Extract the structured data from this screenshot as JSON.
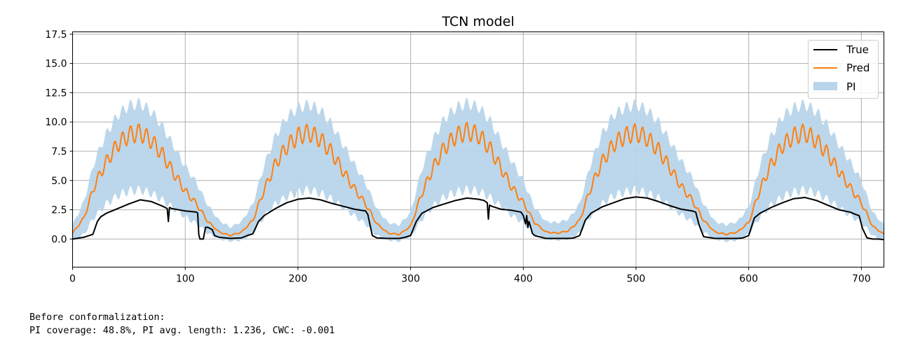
{
  "chart_data": {
    "type": "line",
    "title": "TCN model",
    "xlabel": "",
    "ylabel": "",
    "xlim": [
      0,
      720
    ],
    "ylim": [
      -2.4,
      17.7
    ],
    "xticks": [
      0,
      100,
      200,
      300,
      400,
      500,
      600,
      700
    ],
    "xtick_labels": [
      "0",
      "100",
      "200",
      "300",
      "400",
      "500",
      "600",
      "700"
    ],
    "yticks": [
      0.0,
      2.5,
      5.0,
      7.5,
      10.0,
      12.5,
      15.0,
      17.5
    ],
    "ytick_labels": [
      "0.0",
      "2.5",
      "5.0",
      "7.5",
      "10.0",
      "12.5",
      "15.0",
      "17.5"
    ],
    "grid": true,
    "legend_position": "top-right",
    "legend": [
      "True",
      "Pred",
      "PI"
    ],
    "series": [
      {
        "name": "True",
        "color": "#000000",
        "x": [
          0,
          10,
          18,
          22,
          25,
          30,
          40,
          50,
          60,
          70,
          80,
          84,
          85,
          86,
          88,
          100,
          110,
          111,
          112,
          113,
          114,
          116,
          118,
          120,
          124,
          126,
          130,
          140,
          150,
          155,
          160,
          165,
          170,
          180,
          190,
          200,
          210,
          220,
          230,
          240,
          250,
          260,
          262,
          266,
          270,
          280,
          290,
          295,
          300,
          305,
          310,
          320,
          330,
          340,
          350,
          360,
          365,
          368,
          369,
          370,
          371,
          372,
          380,
          390,
          398,
          400,
          402,
          403,
          404,
          405,
          406,
          408,
          410,
          420,
          430,
          440,
          445,
          450,
          455,
          460,
          470,
          480,
          490,
          500,
          510,
          520,
          530,
          540,
          550,
          553,
          556,
          560,
          570,
          580,
          590,
          595,
          600,
          605,
          610,
          620,
          630,
          640,
          650,
          660,
          670,
          680,
          690,
          695,
          698,
          701,
          705,
          710,
          715,
          720
        ],
        "y": [
          0.0,
          0.15,
          0.4,
          1.5,
          1.9,
          2.2,
          2.6,
          3.0,
          3.35,
          3.2,
          2.8,
          2.6,
          1.5,
          2.7,
          2.6,
          2.4,
          2.3,
          2.2,
          0.4,
          0.0,
          0.0,
          0.0,
          1.0,
          1.0,
          0.8,
          0.3,
          0.15,
          0.05,
          0.1,
          0.3,
          0.45,
          1.5,
          2.0,
          2.6,
          3.1,
          3.4,
          3.5,
          3.35,
          3.05,
          2.8,
          2.55,
          2.4,
          2.1,
          0.3,
          0.1,
          0.05,
          0.05,
          0.15,
          0.3,
          1.5,
          2.2,
          2.7,
          3.0,
          3.3,
          3.5,
          3.4,
          3.3,
          3.1,
          1.7,
          2.9,
          2.85,
          2.8,
          2.55,
          2.45,
          2.3,
          2.0,
          1.3,
          2.0,
          1.0,
          1.5,
          1.2,
          0.5,
          0.3,
          0.05,
          0.05,
          0.05,
          0.1,
          0.3,
          1.6,
          2.2,
          2.75,
          3.1,
          3.45,
          3.6,
          3.5,
          3.2,
          2.85,
          2.55,
          2.4,
          2.3,
          1.2,
          0.2,
          0.05,
          0.05,
          0.05,
          0.1,
          0.3,
          1.8,
          2.2,
          2.7,
          3.1,
          3.45,
          3.55,
          3.3,
          2.9,
          2.5,
          2.3,
          2.1,
          2.0,
          0.9,
          0.1,
          0.0,
          0.0,
          -0.05
        ]
      },
      {
        "name": "Pred",
        "color": "#ff7f0e",
        "x": [
          0,
          10,
          20,
          30,
          40,
          50,
          60,
          70,
          80,
          90,
          100,
          110,
          120,
          130,
          140,
          150,
          160,
          170,
          180,
          190,
          200,
          210,
          220,
          230,
          240,
          250,
          260,
          270,
          280,
          290,
          300,
          310,
          320,
          330,
          340,
          350,
          360,
          370,
          380,
          390,
          400,
          410,
          420,
          430,
          440,
          450,
          460,
          470,
          480,
          490,
          500,
          510,
          520,
          530,
          540,
          550,
          560,
          570,
          580,
          590,
          600,
          610,
          620,
          630,
          640,
          650,
          660,
          670,
          680,
          690,
          700,
          710,
          720
        ],
        "y": [
          0.5,
          1.8,
          4.7,
          6.6,
          8.1,
          8.9,
          9.1,
          8.4,
          7.2,
          5.6,
          4.1,
          3.0,
          1.5,
          0.6,
          0.3,
          0.6,
          1.6,
          4.2,
          6.4,
          7.9,
          8.8,
          9.1,
          8.5,
          7.4,
          5.8,
          4.3,
          3.0,
          1.3,
          0.5,
          0.4,
          1.1,
          3.9,
          6.1,
          7.8,
          8.8,
          9.2,
          8.9,
          7.8,
          6.1,
          4.4,
          3.1,
          1.4,
          0.6,
          0.5,
          0.7,
          1.6,
          4.4,
          6.6,
          8.1,
          8.8,
          9.1,
          8.6,
          7.6,
          6.1,
          4.5,
          3.3,
          1.6,
          0.6,
          0.4,
          0.6,
          1.4,
          4.2,
          6.4,
          8.0,
          8.8,
          9.1,
          8.4,
          7.3,
          5.8,
          4.4,
          3.1,
          1.1,
          0.4
        ]
      },
      {
        "name": "PI",
        "color": "#b8d5ea",
        "type": "area",
        "x": [
          0,
          10,
          20,
          30,
          40,
          50,
          60,
          70,
          80,
          90,
          100,
          110,
          120,
          130,
          140,
          150,
          160,
          170,
          180,
          190,
          200,
          210,
          220,
          230,
          240,
          250,
          260,
          270,
          280,
          290,
          300,
          310,
          320,
          330,
          340,
          350,
          360,
          370,
          380,
          390,
          400,
          410,
          420,
          430,
          440,
          450,
          460,
          470,
          480,
          490,
          500,
          510,
          520,
          530,
          540,
          550,
          560,
          570,
          580,
          590,
          600,
          610,
          620,
          630,
          640,
          650,
          660,
          670,
          680,
          690,
          700,
          710,
          720
        ],
        "lower": [
          -0.2,
          0.4,
          2.0,
          3.0,
          3.7,
          4.1,
          4.2,
          3.9,
          3.3,
          2.6,
          1.9,
          1.3,
          0.5,
          0.0,
          -0.2,
          -0.1,
          0.5,
          1.9,
          3.0,
          3.6,
          4.0,
          4.2,
          3.9,
          3.4,
          2.7,
          2.0,
          1.3,
          0.3,
          -0.1,
          -0.2,
          0.2,
          1.7,
          2.8,
          3.6,
          4.0,
          4.2,
          4.1,
          3.6,
          2.8,
          2.0,
          1.4,
          0.4,
          0.0,
          -0.1,
          0.0,
          0.5,
          2.0,
          3.0,
          3.7,
          4.0,
          4.2,
          3.9,
          3.5,
          2.8,
          2.1,
          1.5,
          0.6,
          0.0,
          -0.2,
          -0.1,
          0.4,
          1.9,
          2.9,
          3.6,
          4.0,
          4.2,
          3.9,
          3.4,
          2.7,
          2.0,
          1.4,
          0.3,
          -0.2
        ],
        "upper": [
          1.2,
          3.2,
          6.8,
          9.0,
          10.6,
          11.4,
          11.6,
          10.9,
          9.6,
          7.9,
          6.2,
          4.8,
          2.9,
          1.6,
          1.0,
          1.5,
          3.0,
          6.3,
          8.8,
          10.4,
          11.2,
          11.5,
          11.0,
          9.8,
          8.1,
          6.4,
          4.8,
          2.6,
          1.4,
          1.2,
          2.3,
          6.0,
          8.5,
          10.3,
          11.2,
          11.6,
          11.3,
          10.2,
          8.4,
          6.6,
          5.0,
          2.7,
          1.5,
          1.4,
          1.7,
          3.0,
          6.5,
          9.0,
          10.6,
          11.2,
          11.5,
          11.0,
          10.0,
          8.4,
          6.7,
          5.2,
          3.0,
          1.5,
          1.2,
          1.5,
          2.7,
          6.3,
          8.8,
          10.5,
          11.2,
          11.5,
          10.9,
          9.7,
          8.1,
          6.6,
          5.0,
          2.3,
          1.2
        ]
      }
    ]
  },
  "console": {
    "line1": "Before conformalization:",
    "line2": "PI coverage: 48.8%, PI avg. length: 1.236, CWC: -0.001"
  }
}
